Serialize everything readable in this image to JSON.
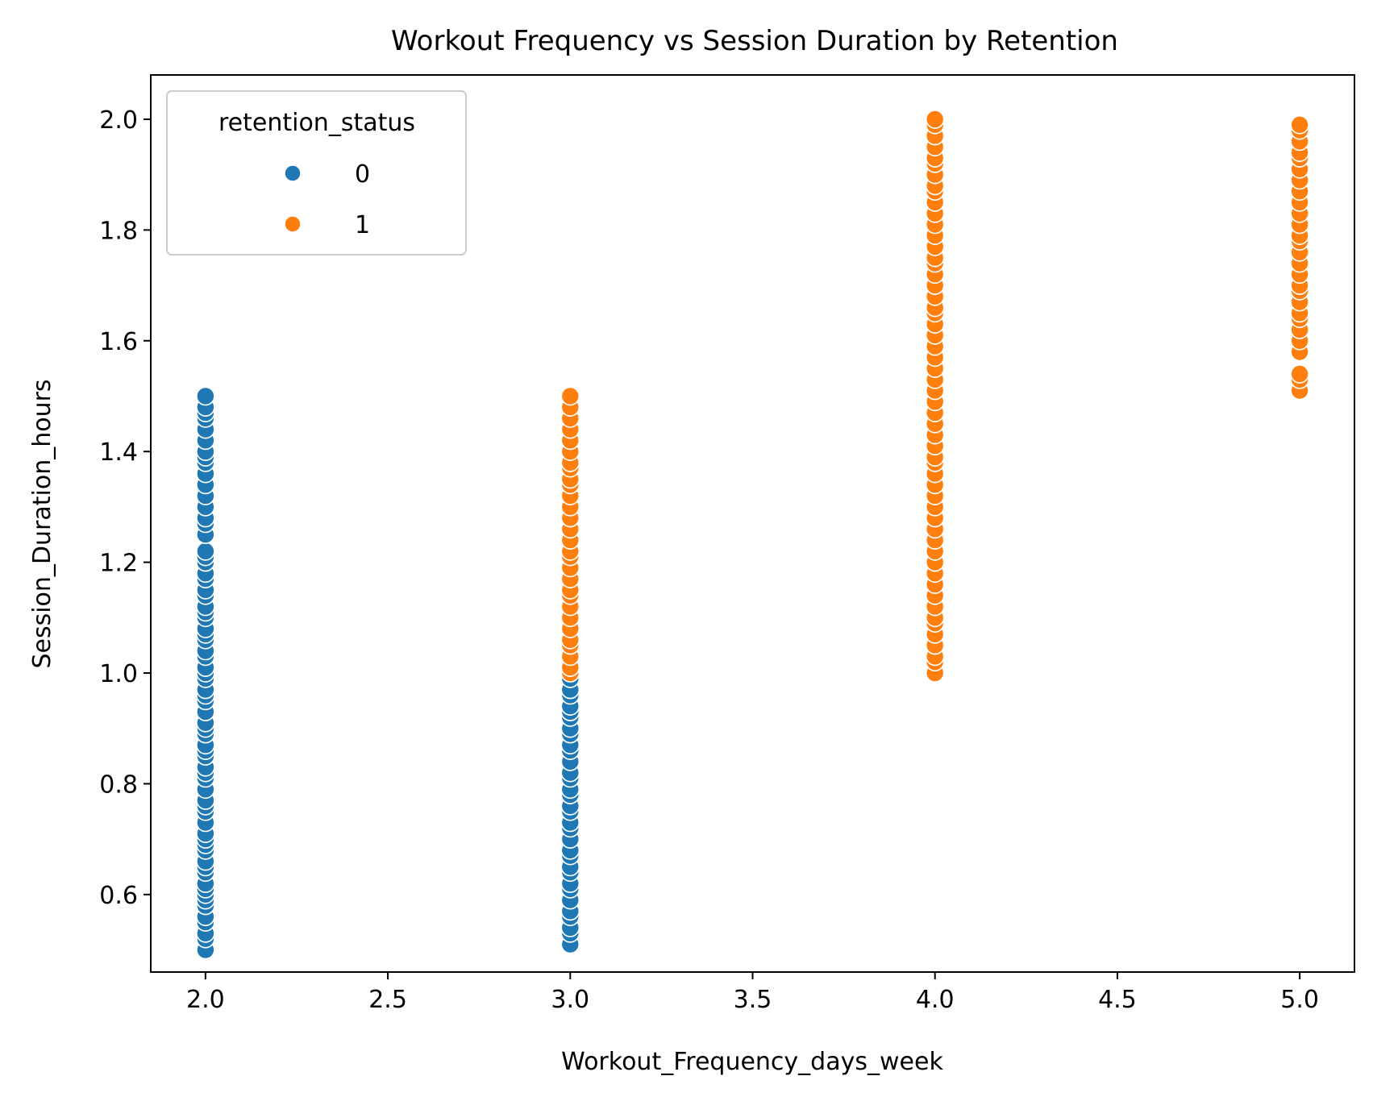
{
  "chart_data": {
    "type": "scatter",
    "title": "Workout Frequency vs Session Duration by Retention",
    "xlabel": "Workout_Frequency_days_week",
    "ylabel": "Session_Duration_hours",
    "xlim": [
      1.85,
      5.15
    ],
    "ylim": [
      0.46,
      2.08
    ],
    "xticks": [
      "2.0",
      "2.5",
      "3.0",
      "3.5",
      "4.0",
      "4.5",
      "5.0"
    ],
    "yticks": [
      "0.6",
      "0.8",
      "1.0",
      "1.2",
      "1.4",
      "1.6",
      "1.8",
      "2.0"
    ],
    "grid": false,
    "legend": {
      "title": "retention_status",
      "placement": "top-left",
      "entries": [
        "0",
        "1"
      ]
    },
    "colors": {
      "0": "#1f77b4",
      "1": "#ff7f0e"
    },
    "series": [
      {
        "name": "0",
        "points": [
          [
            2,
            0.5
          ],
          [
            2,
            0.52
          ],
          [
            2,
            0.53
          ],
          [
            2,
            0.55
          ],
          [
            2,
            0.56
          ],
          [
            2,
            0.58
          ],
          [
            2,
            0.59
          ],
          [
            2,
            0.6
          ],
          [
            2,
            0.61
          ],
          [
            2,
            0.62
          ],
          [
            2,
            0.64
          ],
          [
            2,
            0.65
          ],
          [
            2,
            0.66
          ],
          [
            2,
            0.68
          ],
          [
            2,
            0.69
          ],
          [
            2,
            0.7
          ],
          [
            2,
            0.71
          ],
          [
            2,
            0.73
          ],
          [
            2,
            0.75
          ],
          [
            2,
            0.76
          ],
          [
            2,
            0.77
          ],
          [
            2,
            0.79
          ],
          [
            2,
            0.81
          ],
          [
            2,
            0.82
          ],
          [
            2,
            0.83
          ],
          [
            2,
            0.85
          ],
          [
            2,
            0.86
          ],
          [
            2,
            0.87
          ],
          [
            2,
            0.89
          ],
          [
            2,
            0.9
          ],
          [
            2,
            0.91
          ],
          [
            2,
            0.93
          ],
          [
            2,
            0.95
          ],
          [
            2,
            0.96
          ],
          [
            2,
            0.97
          ],
          [
            2,
            0.99
          ],
          [
            2,
            1.0
          ],
          [
            2,
            1.01
          ],
          [
            2,
            1.03
          ],
          [
            2,
            1.04
          ],
          [
            2,
            1.06
          ],
          [
            2,
            1.07
          ],
          [
            2,
            1.08
          ],
          [
            2,
            1.1
          ],
          [
            2,
            1.11
          ],
          [
            2,
            1.12
          ],
          [
            2,
            1.14
          ],
          [
            2,
            1.15
          ],
          [
            2,
            1.17
          ],
          [
            2,
            1.18
          ],
          [
            2,
            1.2
          ],
          [
            2,
            1.21
          ],
          [
            2,
            1.22
          ],
          [
            2,
            1.25
          ],
          [
            2,
            1.27
          ],
          [
            2,
            1.28
          ],
          [
            2,
            1.3
          ],
          [
            2,
            1.32
          ],
          [
            2,
            1.34
          ],
          [
            2,
            1.36
          ],
          [
            2,
            1.38
          ],
          [
            2,
            1.39
          ],
          [
            2,
            1.4
          ],
          [
            2,
            1.42
          ],
          [
            2,
            1.44
          ],
          [
            2,
            1.46
          ],
          [
            2,
            1.47
          ],
          [
            2,
            1.48
          ],
          [
            2,
            1.5
          ],
          [
            3,
            0.51
          ],
          [
            3,
            0.53
          ],
          [
            3,
            0.54
          ],
          [
            3,
            0.56
          ],
          [
            3,
            0.57
          ],
          [
            3,
            0.59
          ],
          [
            3,
            0.61
          ],
          [
            3,
            0.62
          ],
          [
            3,
            0.64
          ],
          [
            3,
            0.65
          ],
          [
            3,
            0.67
          ],
          [
            3,
            0.68
          ],
          [
            3,
            0.7
          ],
          [
            3,
            0.72
          ],
          [
            3,
            0.73
          ],
          [
            3,
            0.75
          ],
          [
            3,
            0.76
          ],
          [
            3,
            0.78
          ],
          [
            3,
            0.79
          ],
          [
            3,
            0.81
          ],
          [
            3,
            0.82
          ],
          [
            3,
            0.84
          ],
          [
            3,
            0.86
          ],
          [
            3,
            0.87
          ],
          [
            3,
            0.89
          ],
          [
            3,
            0.9
          ],
          [
            3,
            0.92
          ],
          [
            3,
            0.93
          ],
          [
            3,
            0.94
          ],
          [
            3,
            0.96
          ],
          [
            3,
            0.97
          ],
          [
            3,
            0.99
          ]
        ]
      },
      {
        "name": "1",
        "points": [
          [
            3,
            1.0
          ],
          [
            3,
            1.01
          ],
          [
            3,
            1.03
          ],
          [
            3,
            1.05
          ],
          [
            3,
            1.06
          ],
          [
            3,
            1.08
          ],
          [
            3,
            1.1
          ],
          [
            3,
            1.12
          ],
          [
            3,
            1.14
          ],
          [
            3,
            1.15
          ],
          [
            3,
            1.17
          ],
          [
            3,
            1.19
          ],
          [
            3,
            1.21
          ],
          [
            3,
            1.22
          ],
          [
            3,
            1.24
          ],
          [
            3,
            1.26
          ],
          [
            3,
            1.28
          ],
          [
            3,
            1.3
          ],
          [
            3,
            1.32
          ],
          [
            3,
            1.34
          ],
          [
            3,
            1.35
          ],
          [
            3,
            1.37
          ],
          [
            3,
            1.38
          ],
          [
            3,
            1.4
          ],
          [
            3,
            1.42
          ],
          [
            3,
            1.44
          ],
          [
            3,
            1.46
          ],
          [
            3,
            1.48
          ],
          [
            3,
            1.5
          ],
          [
            4,
            1.0
          ],
          [
            4,
            1.02
          ],
          [
            4,
            1.03
          ],
          [
            4,
            1.05
          ],
          [
            4,
            1.07
          ],
          [
            4,
            1.09
          ],
          [
            4,
            1.1
          ],
          [
            4,
            1.12
          ],
          [
            4,
            1.14
          ],
          [
            4,
            1.16
          ],
          [
            4,
            1.18
          ],
          [
            4,
            1.2
          ],
          [
            4,
            1.22
          ],
          [
            4,
            1.24
          ],
          [
            4,
            1.26
          ],
          [
            4,
            1.28
          ],
          [
            4,
            1.3
          ],
          [
            4,
            1.32
          ],
          [
            4,
            1.34
          ],
          [
            4,
            1.36
          ],
          [
            4,
            1.38
          ],
          [
            4,
            1.39
          ],
          [
            4,
            1.41
          ],
          [
            4,
            1.43
          ],
          [
            4,
            1.45
          ],
          [
            4,
            1.47
          ],
          [
            4,
            1.49
          ],
          [
            4,
            1.51
          ],
          [
            4,
            1.53
          ],
          [
            4,
            1.55
          ],
          [
            4,
            1.57
          ],
          [
            4,
            1.59
          ],
          [
            4,
            1.61
          ],
          [
            4,
            1.63
          ],
          [
            4,
            1.65
          ],
          [
            4,
            1.66
          ],
          [
            4,
            1.68
          ],
          [
            4,
            1.7
          ],
          [
            4,
            1.72
          ],
          [
            4,
            1.74
          ],
          [
            4,
            1.75
          ],
          [
            4,
            1.77
          ],
          [
            4,
            1.79
          ],
          [
            4,
            1.81
          ],
          [
            4,
            1.83
          ],
          [
            4,
            1.85
          ],
          [
            4,
            1.87
          ],
          [
            4,
            1.88
          ],
          [
            4,
            1.9
          ],
          [
            4,
            1.92
          ],
          [
            4,
            1.93
          ],
          [
            4,
            1.95
          ],
          [
            4,
            1.97
          ],
          [
            4,
            1.99
          ],
          [
            4,
            2.0
          ],
          [
            5,
            1.51
          ],
          [
            5,
            1.53
          ],
          [
            5,
            1.54
          ],
          [
            5,
            1.58
          ],
          [
            5,
            1.6
          ],
          [
            5,
            1.62
          ],
          [
            5,
            1.64
          ],
          [
            5,
            1.65
          ],
          [
            5,
            1.67
          ],
          [
            5,
            1.69
          ],
          [
            5,
            1.7
          ],
          [
            5,
            1.72
          ],
          [
            5,
            1.74
          ],
          [
            5,
            1.76
          ],
          [
            5,
            1.78
          ],
          [
            5,
            1.79
          ],
          [
            5,
            1.81
          ],
          [
            5,
            1.83
          ],
          [
            5,
            1.85
          ],
          [
            5,
            1.87
          ],
          [
            5,
            1.89
          ],
          [
            5,
            1.91
          ],
          [
            5,
            1.93
          ],
          [
            5,
            1.94
          ],
          [
            5,
            1.96
          ],
          [
            5,
            1.98
          ],
          [
            5,
            1.99
          ]
        ]
      }
    ]
  }
}
